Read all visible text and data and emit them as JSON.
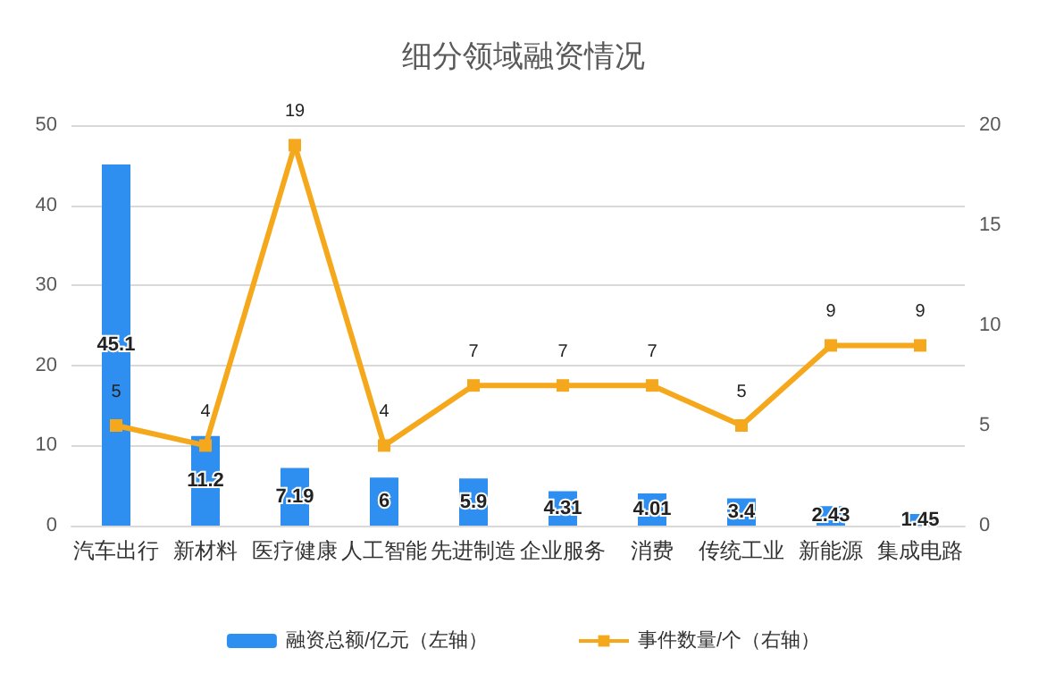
{
  "chart_data": {
    "type": "bar",
    "title": "细分领域融资情况",
    "categories": [
      "汽车出行",
      "新材料",
      "医疗健康",
      "人工智能",
      "先进制造",
      "企业服务",
      "消费",
      "传统工业",
      "新能源",
      "集成电路"
    ],
    "series": [
      {
        "name": "融资总额/亿元（左轴）",
        "color": "#2e8ff0",
        "values": [
          45.1,
          11.2,
          7.19,
          6,
          5.9,
          4.31,
          4.01,
          3.4,
          2.43,
          1.45
        ]
      },
      {
        "name": "事件数量/个（右轴）",
        "type": "line",
        "axis": "y2",
        "color": "#f5a81c",
        "marker": "square",
        "values": [
          5,
          4,
          19,
          4,
          7,
          7,
          7,
          5,
          9,
          9
        ]
      }
    ],
    "ylim": [
      0,
      50
    ],
    "yticks": [
      0,
      10,
      20,
      30,
      40,
      50
    ],
    "y2lim": [
      0,
      20
    ],
    "y2ticks": [
      0,
      5,
      10,
      15,
      20
    ],
    "grid": "y",
    "legend": "bottom",
    "data_labels": true
  }
}
